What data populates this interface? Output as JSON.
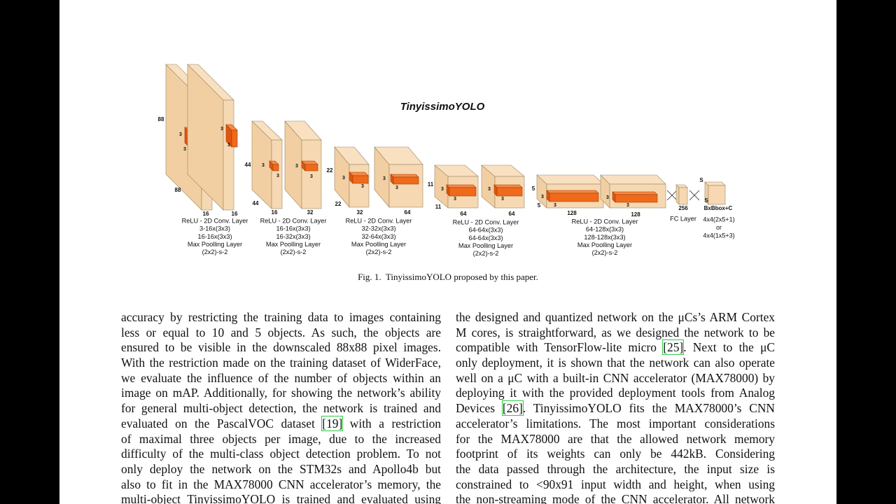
{
  "figure": {
    "title": "TinyissimoYOLO",
    "blocks": [
      {
        "dims": [
          "88",
          "88"
        ],
        "slabs": [
          {
            "kernel": [
              "3",
              "3"
            ],
            "channels": "16"
          },
          {
            "kernel": [
              "3",
              "3"
            ],
            "channels": "16"
          }
        ],
        "caption": [
          "ReLU - 2D Conv. Layer",
          "3-16x(3x3)",
          "16-16x(3x3)",
          "Max Poolling Layer",
          "(2x2)-s-2"
        ]
      },
      {
        "dims": [
          "44",
          "44"
        ],
        "slabs": [
          {
            "kernel": [
              "3",
              "3"
            ],
            "channels": "16"
          },
          {
            "kernel": [
              "3",
              "3"
            ],
            "channels": "32"
          }
        ],
        "caption": [
          "ReLU - 2D Conv. Layer",
          "16-16x(3x3)",
          "16-32x(3x3)",
          "Max Poolling Layer",
          "(2x2)-s-2"
        ]
      },
      {
        "dims": [
          "22",
          "22"
        ],
        "slabs": [
          {
            "kernel": [
              "3",
              "3"
            ],
            "channels": "32"
          },
          {
            "kernel": [
              "3",
              "3"
            ],
            "channels": "64"
          }
        ],
        "caption": [
          "ReLU - 2D Conv. Layer",
          "32-32x(3x3)",
          "32-64x(3x3)",
          "Max Poolling Layer",
          "(2x2)-s-2"
        ]
      },
      {
        "dims": [
          "11",
          "11"
        ],
        "slabs": [
          {
            "kernel": [
              "3",
              "3"
            ],
            "channels": "64"
          },
          {
            "kernel": [
              "3",
              "3"
            ],
            "channels": "64"
          }
        ],
        "caption": [
          "ReLU - 2D Conv. Layer",
          "64-64x(3x3)",
          "64-64x(3x3)",
          "Max Poolling Layer",
          "(2x2)-s-2"
        ]
      },
      {
        "dims": [
          "5",
          "5"
        ],
        "slabs": [
          {
            "kernel": [
              "3",
              "3"
            ],
            "channels": "128"
          },
          {
            "kernel": [
              "3",
              "3"
            ],
            "channels": "128"
          }
        ],
        "caption": [
          "ReLU - 2D Conv. Layer",
          "64-128x(3x3)",
          "128-128x(3x3)",
          "Max Poolling Layer",
          "(2x2)-s-2"
        ]
      }
    ],
    "fc": {
      "units": "256",
      "label": "FC Layer",
      "grid": [
        "S",
        "S"
      ],
      "output": "BxBbox+C",
      "formats": [
        "4x4(2x5+1)",
        "or",
        "4x4(1x5+3)"
      ]
    },
    "caption": "Fig. 1.  TinyissimoYOLO proposed by this paper."
  },
  "body": {
    "left": [
      [
        "accuracy by restricting the training data to images containing"
      ],
      [
        "less or equal to 10 and 5 objects. As such, the objects are"
      ],
      [
        "ensured to be visible in the downscaled 88x88 pixel images."
      ],
      [
        "With the restriction made on the training dataset of WiderFace,"
      ],
      [
        "we evaluate the influence of the number of objects within an"
      ],
      [
        "image on mAP. Additionally, for showing the network’s ability"
      ],
      [
        "for general multi-object detection, the network is trained and"
      ],
      [
        "evaluated on the PascalVOC dataset ",
        "[19]",
        " with a restriction"
      ],
      [
        "of maximal three objects per image, due to the increased"
      ],
      [
        "difficulty of the multi-class object detection problem. To not"
      ],
      [
        "only deploy the network on the STM32s and Apollo4b but"
      ],
      [
        "also to fit in the MAX78000 CNN accelerator’s memory, the"
      ],
      [
        "multi-object TinyissimoYOLO is trained and evaluated using"
      ]
    ],
    "right": [
      [
        "the designed and quantized network on the μCs’s ARM Cortex"
      ],
      [
        "M cores, is straightforward, as we designed the network to be"
      ],
      [
        "compatible with TensorFlow-lite micro ",
        "[25]",
        ". Next to the μC"
      ],
      [
        "only deployment, it is shown that the network can also operate"
      ],
      [
        "well on a μC with a built-in CNN accelerator (MAX78000) by"
      ],
      [
        "deploying it with the provided deployment tools from Analog"
      ],
      [
        "Devices ",
        "[26]",
        ". TinyissimoYOLO fits the MAX78000’s CNN"
      ],
      [
        "accelerator’s limitations. The most important considerations"
      ],
      [
        "for the MAX78000 are that the allowed network memory"
      ],
      [
        "footprint of its weights can only be 442kB. Considering"
      ],
      [
        "the data passed through the architecture, the input size is"
      ],
      [
        "constrained to <90x91 input width and height, when using"
      ],
      [
        "the non-streaming mode of the CNN accelerator. All network"
      ]
    ]
  }
}
